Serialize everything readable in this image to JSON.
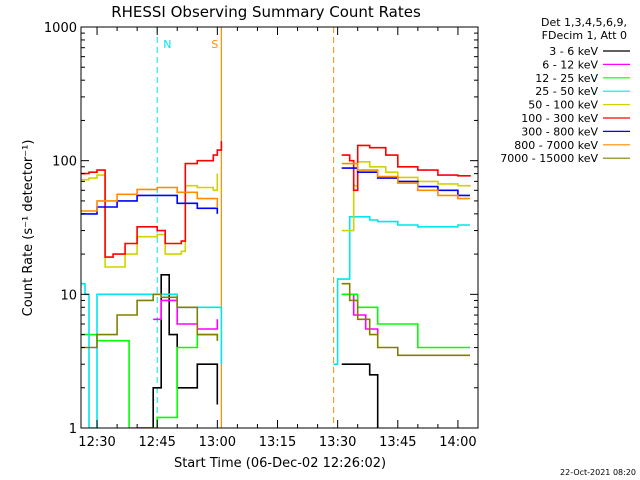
{
  "chart_data": {
    "type": "line",
    "title": "RHESSI Observing Summary Count Rates",
    "xlabel": "Start Time (06-Dec-02 12:26:02)",
    "ylabel": "Count Rate (s⁻¹ detector⁻¹)",
    "yscale": "log",
    "ylim": [
      1,
      1000
    ],
    "xlim": [
      "12:26",
      "14:05"
    ],
    "x_ticks": [
      "12:30",
      "12:45",
      "13:00",
      "13:15",
      "13:30",
      "13:45",
      "14:00"
    ],
    "y_ticks": [
      "1",
      "10",
      "100",
      "1000"
    ],
    "legend_header": [
      "Det 1,3,4,5,6,9,",
      "FDecim 1, Att 0"
    ],
    "legend_position": "right",
    "gaps": [
      [
        "13:01",
        "13:29"
      ]
    ],
    "markers": [
      {
        "label": "N",
        "time": "12:45",
        "color": "#00e5ee",
        "style": "dashed"
      },
      {
        "label": "S",
        "time": "13:01",
        "color": "#ff8c00",
        "style": "solid"
      }
    ],
    "series": [
      {
        "name": "3 - 6 keV",
        "color": "#000000",
        "x": [
          "12:40",
          "12:44",
          "12:46",
          "12:48",
          "12:50",
          "12:55",
          "13:00",
          "13:31",
          "13:35",
          "13:38",
          "13:40"
        ],
        "values": [
          1,
          2,
          14,
          5,
          2,
          3,
          1.5,
          3,
          3,
          2.5,
          1
        ]
      },
      {
        "name": "6 - 12 keV",
        "color": "#ff00ff",
        "x": [
          "12:44",
          "12:46",
          "12:50",
          "12:55",
          "13:00",
          "13:31",
          "13:34",
          "13:37",
          "13:40"
        ],
        "values": [
          6.5,
          9,
          6,
          5.5,
          6.5,
          10,
          7,
          5.5,
          5
        ]
      },
      {
        "name": "12 - 25 keV",
        "color": "#00ff00",
        "x": [
          "12:26",
          "12:30",
          "12:38",
          "12:45",
          "12:50",
          "12:55",
          "13:00",
          "13:31",
          "13:35",
          "13:40",
          "13:45",
          "13:50",
          "14:00",
          "14:03"
        ],
        "values": [
          5,
          4.5,
          1,
          1.2,
          4,
          5,
          4.5,
          10,
          8,
          6,
          6,
          4,
          4,
          4
        ]
      },
      {
        "name": "25 - 50 keV",
        "color": "#00e5ee",
        "x": [
          "12:26",
          "12:27",
          "12:28",
          "12:29",
          "12:30",
          "12:35",
          "12:40",
          "12:45",
          "12:50",
          "12:55",
          "13:00",
          "13:01",
          "13:29",
          "13:30",
          "13:32",
          "13:33",
          "13:38",
          "13:40",
          "13:45",
          "13:50",
          "13:55",
          "14:00",
          "14:03"
        ],
        "values": [
          12,
          10,
          1,
          1,
          10,
          10,
          10,
          10,
          8,
          8,
          8,
          3,
          3,
          13,
          13,
          38,
          36,
          35,
          33,
          32,
          32,
          33,
          33
        ]
      },
      {
        "name": "50 - 100 keV",
        "color": "#d2d200",
        "x": [
          "12:26",
          "12:28",
          "12:30",
          "12:32",
          "12:34",
          "12:37",
          "12:40",
          "12:45",
          "12:47",
          "12:51",
          "12:52",
          "12:55",
          "12:59",
          "13:00",
          "13:31",
          "13:33",
          "13:34",
          "13:35",
          "13:38",
          "13:42",
          "13:45",
          "13:50",
          "13:55",
          "14:00",
          "14:03"
        ],
        "values": [
          72,
          74,
          78,
          16,
          16,
          20,
          27,
          28,
          20,
          21,
          65,
          63,
          60,
          80,
          30,
          30,
          65,
          98,
          90,
          82,
          75,
          70,
          67,
          65,
          64
        ]
      },
      {
        "name": "100 - 300 keV",
        "color": "#ff0000",
        "x": [
          "12:26",
          "12:28",
          "12:30",
          "12:32",
          "12:34",
          "12:37",
          "12:40",
          "12:45",
          "12:47",
          "12:51",
          "12:52",
          "12:55",
          "12:59",
          "13:00",
          "13:01",
          "13:31",
          "13:33",
          "13:34",
          "13:35",
          "13:38",
          "13:42",
          "13:45",
          "13:50",
          "13:55",
          "14:00",
          "14:03"
        ],
        "values": [
          80,
          82,
          85,
          19,
          20,
          24,
          32,
          30,
          24,
          25,
          95,
          100,
          110,
          120,
          140,
          110,
          100,
          60,
          130,
          125,
          110,
          90,
          85,
          78,
          77,
          76
        ]
      },
      {
        "name": "300 - 800 keV",
        "color": "#0000ff",
        "x": [
          "12:26",
          "12:30",
          "12:35",
          "12:40",
          "12:45",
          "12:50",
          "12:55",
          "13:00",
          "13:31",
          "13:35",
          "13:40",
          "13:45",
          "13:50",
          "13:55",
          "14:00",
          "14:03"
        ],
        "values": [
          40,
          45,
          50,
          55,
          55,
          48,
          44,
          40,
          88,
          82,
          74,
          70,
          64,
          60,
          55,
          55
        ]
      },
      {
        "name": "800 - 7000 keV",
        "color": "#ff8c00",
        "x": [
          "12:26",
          "12:30",
          "12:35",
          "12:40",
          "12:45",
          "12:50",
          "12:55",
          "13:00",
          "13:31",
          "13:35",
          "13:40",
          "13:45",
          "13:50",
          "13:55",
          "14:00",
          "14:03"
        ],
        "values": [
          42,
          50,
          56,
          61,
          63,
          58,
          52,
          45,
          95,
          85,
          76,
          68,
          60,
          55,
          52,
          52
        ]
      },
      {
        "name": "7000 - 15000 keV",
        "color": "#808000",
        "x": [
          "12:26",
          "12:30",
          "12:35",
          "12:40",
          "12:44",
          "12:46",
          "12:50",
          "12:55",
          "13:00",
          "13:31",
          "13:33",
          "13:35",
          "13:38",
          "13:40",
          "13:45",
          "13:50",
          "14:00",
          "14:03"
        ],
        "values": [
          4,
          5,
          7,
          9,
          10,
          9.5,
          8,
          5,
          4.5,
          12,
          9,
          6.5,
          5,
          4,
          3.5,
          3.5,
          3.5,
          3.5
        ]
      }
    ]
  },
  "footer": {
    "timestamp": "22-Oct-2021 08:20"
  }
}
